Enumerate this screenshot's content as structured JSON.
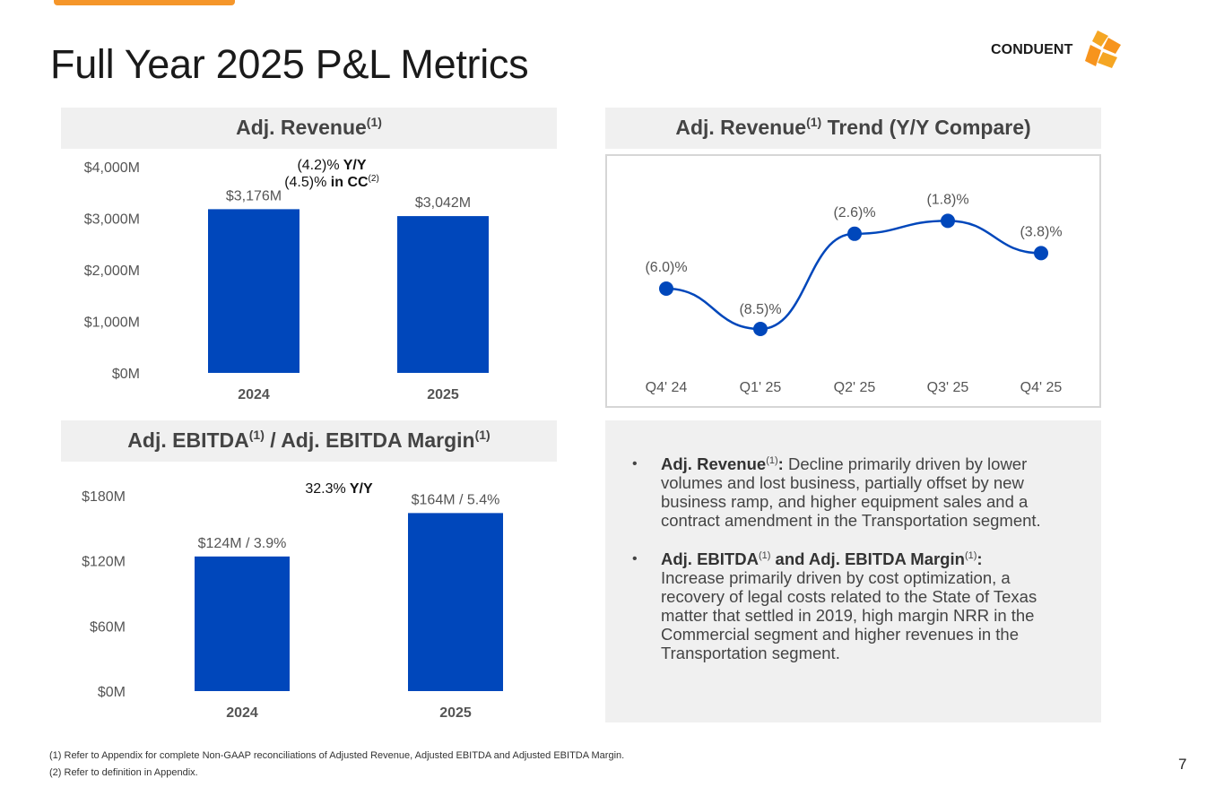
{
  "title": "Full Year 2025 P&L Metrics",
  "logo": {
    "text": "CONDUENT"
  },
  "colors": {
    "accent": "#f5962a",
    "bar": "#0047bb",
    "header_bg": "#f0f0f0"
  },
  "revenue_panel": {
    "title": "Adj. Revenue",
    "title_sup": "(1)",
    "yoy_line1": "(4.2)%",
    "yoy_line1_bold": " Y/Y",
    "yoy_line2": "(4.5)%",
    "yoy_line2_bold": " in CC",
    "yoy_line2_sup": "(2)"
  },
  "trend_panel": {
    "title": "Adj. Revenue",
    "title_sup": "(1)",
    "title_rest": " Trend (Y/Y Compare)"
  },
  "ebitda_panel": {
    "title_a": "Adj. EBITDA",
    "title_a_sup": "(1)",
    "title_b": " / Adj. EBITDA Margin",
    "title_b_sup": "(1)",
    "yoy_value": "32.3%",
    "yoy_bold": " Y/Y"
  },
  "chart_data": [
    {
      "id": "adj-revenue",
      "type": "bar",
      "title": "Adj. Revenue",
      "categories": [
        "2024",
        "2025"
      ],
      "values": [
        3176,
        3042
      ],
      "data_labels": [
        "$3,176M",
        "$3,042M"
      ],
      "unit": "$M",
      "ylim": [
        0,
        4000
      ],
      "yticks": [
        0,
        1000,
        2000,
        3000,
        4000
      ],
      "ytick_labels": [
        "$0M",
        "$1,000M",
        "$2,000M",
        "$3,000M",
        "$4,000M"
      ],
      "grid": false
    },
    {
      "id": "adj-revenue-trend",
      "type": "line",
      "title": "Adj. Revenue Trend (Y/Y Compare)",
      "categories": [
        "Q4' 24",
        "Q1' 25",
        "Q2' 25",
        "Q3' 25",
        "Q4' 25"
      ],
      "values": [
        -6.0,
        -8.5,
        -2.6,
        -1.8,
        -3.8
      ],
      "data_labels": [
        "(6.0)%",
        "(8.5)%",
        "(2.6)%",
        "(1.8)%",
        "(3.8)%"
      ],
      "unit": "%",
      "ylim": [
        -10,
        0
      ],
      "grid": false
    },
    {
      "id": "adj-ebitda",
      "type": "bar",
      "title": "Adj. EBITDA / Adj. EBITDA Margin",
      "categories": [
        "2024",
        "2025"
      ],
      "values": [
        124,
        164
      ],
      "margins": [
        3.9,
        5.4
      ],
      "data_labels": [
        "$124M / 3.9%",
        "$164M / 5.4%"
      ],
      "unit": "$M",
      "ylim": [
        0,
        180
      ],
      "yticks": [
        0,
        60,
        120,
        180
      ],
      "ytick_labels": [
        "$0M",
        "$60M",
        "$120M",
        "$180M"
      ],
      "grid": false
    }
  ],
  "commentary": [
    {
      "heading": "Adj. Revenue",
      "heading_sup": "(1)",
      "heading_suffix": ":",
      "text": " Decline primarily driven by lower volumes and lost business, partially offset by new business ramp, and higher equipment sales and a contract amendment in the Transportation segment."
    },
    {
      "heading": "Adj. EBITDA",
      "heading_sup": "(1)",
      "heading_mid": " and Adj. EBITDA Margin",
      "heading_mid_sup": "(1)",
      "heading_suffix": ":",
      "text": " Increase primarily driven by cost optimization, a recovery of legal costs related to the State of Texas matter that settled in 2019, high margin NRR in the Commercial segment and higher revenues in the Transportation segment."
    }
  ],
  "footnotes": [
    "(1) Refer to Appendix for complete Non-GAAP reconciliations of Adjusted Revenue, Adjusted EBITDA and Adjusted EBITDA Margin.",
    "(2) Refer to definition in Appendix."
  ],
  "page_number": "7"
}
